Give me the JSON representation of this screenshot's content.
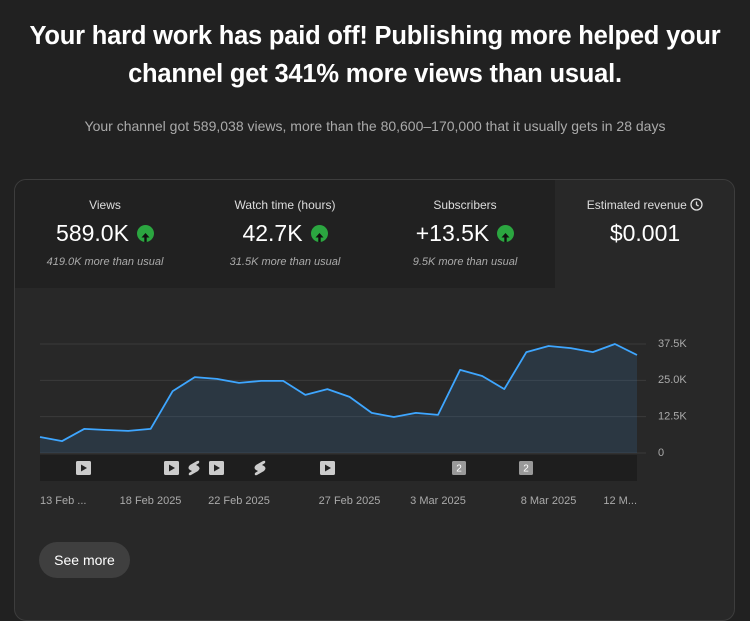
{
  "header": {
    "title_lines": [
      "Your hard work has paid off! Publishing more helped your",
      "channel get 341% more views than usual."
    ],
    "subtitle": "Your channel got 589,038 views, more than the 80,600–170,000 that it usually gets in 28 days"
  },
  "metrics": [
    {
      "label": "Views",
      "value": "589.0K",
      "delta": "419.0K more than usual"
    },
    {
      "label": "Watch time (hours)",
      "value": "42.7K",
      "delta": "31.5K more than usual"
    },
    {
      "label": "Subscribers",
      "value": "+13.5K",
      "delta": "9.5K more than usual"
    },
    {
      "label": "Estimated revenue",
      "value": "$0.001"
    }
  ],
  "chart_data": {
    "type": "area",
    "categories": [
      "13 Feb ...",
      null,
      null,
      null,
      null,
      "18 Feb 2025",
      null,
      null,
      null,
      "22 Feb 2025",
      null,
      null,
      null,
      null,
      "27 Feb 2025",
      null,
      null,
      null,
      "3 Mar 2025",
      null,
      null,
      null,
      null,
      "8 Mar 2025",
      null,
      null,
      null,
      "12 M..."
    ],
    "series": [
      {
        "name": "Views",
        "color": "#3ea6ff",
        "values": [
          5500,
          4100,
          8300,
          7900,
          7600,
          8300,
          21300,
          26100,
          25500,
          24100,
          24800,
          24800,
          20000,
          22000,
          19300,
          13800,
          12400,
          13800,
          13100,
          28600,
          26500,
          22000,
          34700,
          36800,
          36100,
          34700,
          37500,
          33700
        ]
      }
    ],
    "ylim": [
      0,
      37500
    ],
    "yticks": [
      0,
      {
        "value": 12500,
        "label": "12.5K"
      },
      {
        "value": 25000,
        "label": "25.0K"
      },
      {
        "value": 37500,
        "label": "37.5K"
      }
    ],
    "grid": true
  },
  "uploads": {
    "badges": [
      "2",
      "2"
    ]
  },
  "button": "See more"
}
